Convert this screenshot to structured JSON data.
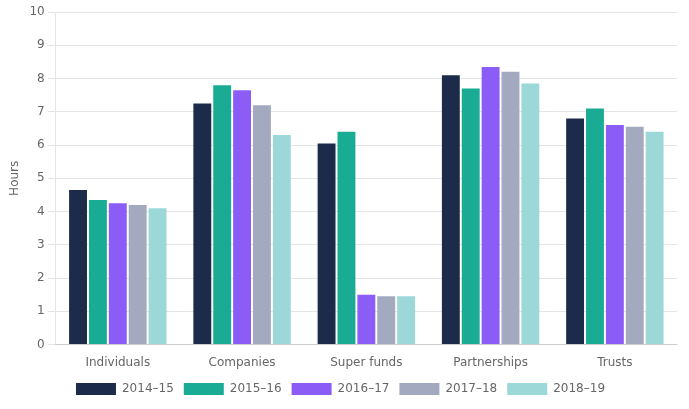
{
  "chart_data": {
    "type": "bar",
    "categories": [
      "Individuals",
      "Companies",
      "Super funds",
      "Partnerships",
      "Trusts"
    ],
    "series": [
      {
        "name": "2014–15",
        "color": "#1c2b4a",
        "values": [
          4.65,
          7.25,
          6.05,
          8.1,
          6.8
        ]
      },
      {
        "name": "2015–16",
        "color": "#1aab95",
        "values": [
          4.35,
          7.8,
          6.4,
          7.7,
          7.1
        ]
      },
      {
        "name": "2016–17",
        "color": "#8b5cf6",
        "values": [
          4.25,
          7.65,
          1.5,
          8.35,
          6.6
        ]
      },
      {
        "name": "2017–18",
        "color": "#a3aabf",
        "values": [
          4.2,
          7.2,
          1.45,
          8.2,
          6.55
        ]
      },
      {
        "name": "2018–19",
        "color": "#9dd8d8",
        "values": [
          4.1,
          6.3,
          1.45,
          7.85,
          6.4
        ]
      }
    ],
    "ylabel": "Hours",
    "ylim": [
      0,
      10
    ],
    "yticks": [
      0,
      1,
      2,
      3,
      4,
      5,
      6,
      7,
      8,
      9,
      10
    ],
    "grid": true,
    "legend": "bottom"
  }
}
